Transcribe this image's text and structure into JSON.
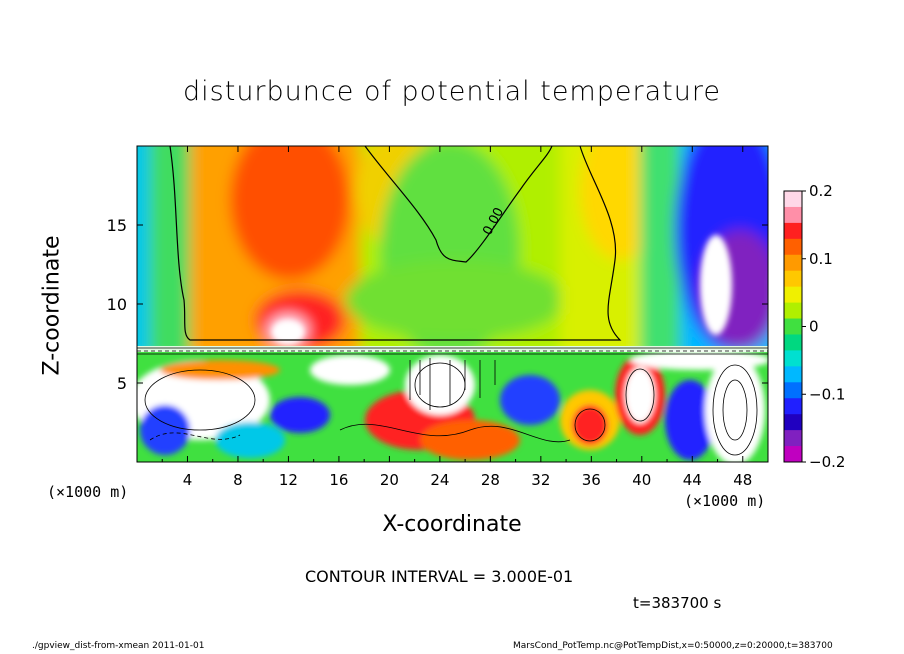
{
  "chart_data": {
    "type": "heatmap",
    "title": "disturbunce of potential temperature",
    "xlabel": "X-coordinate",
    "ylabel": "Z-coordinate",
    "x_unit": "(×1000 m)",
    "y_unit": "(×1000 m)",
    "xlim": [
      0,
      50
    ],
    "ylim": [
      0,
      20
    ],
    "x_ticks": [
      "4",
      "8",
      "12",
      "16",
      "20",
      "24",
      "28",
      "32",
      "36",
      "40",
      "44",
      "48"
    ],
    "y_ticks": [
      "5",
      "10",
      "15"
    ],
    "colorbar": {
      "range": [
        -0.2,
        0.2
      ],
      "tick_labels": [
        "0.2",
        "0.1",
        "0",
        "−0.1",
        "−0.2"
      ],
      "colors": [
        "#ffd8e8",
        "#ff8fa8",
        "#ff2020",
        "#ff6000",
        "#ff9a00",
        "#ffc800",
        "#f0f000",
        "#b0ef00",
        "#40e040",
        "#00d880",
        "#00e0d0",
        "#00b8ff",
        "#0070ff",
        "#2020ff",
        "#2000c0",
        "#8020c0",
        "#c000c0"
      ]
    },
    "contour_value_label": "0.00",
    "contour_interval_text": "CONTOUR INTERVAL = 3.000E-01",
    "time_text": "t=383700 s"
  },
  "footer": {
    "left": "./gpview_dist-from-xmean  2011-01-01",
    "right": "MarsCond_PotTemp.nc@PotTempDist,x=0:50000,z=0:20000,t=383700"
  }
}
